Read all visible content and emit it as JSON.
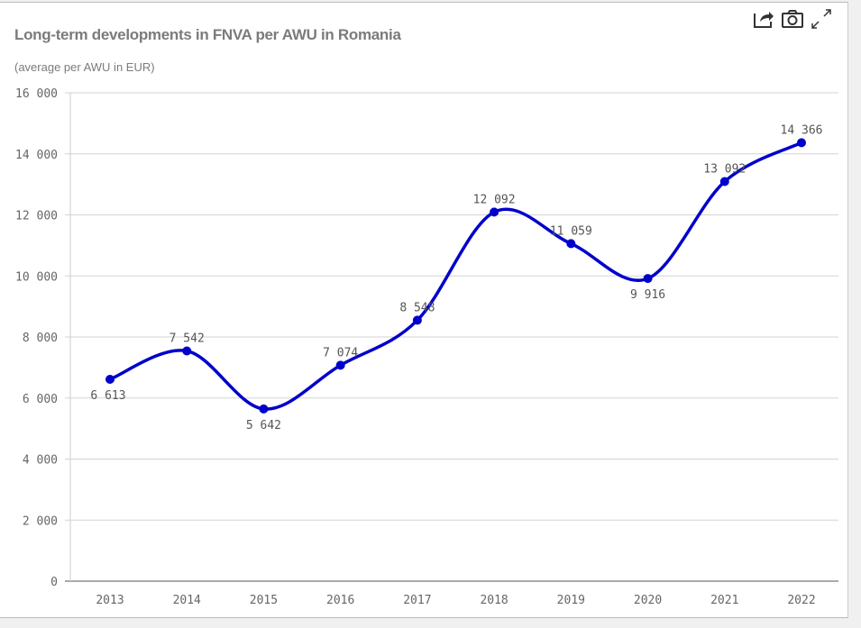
{
  "header": {
    "title": "Long-term developments in FNVA per AWU in  Romania",
    "subtitle": "(average per AWU in EUR)"
  },
  "toolbar": {
    "icons": [
      "share-icon",
      "camera-icon",
      "expand-icon"
    ]
  },
  "colors": {
    "line": "#0000cc",
    "grid": "#d3d3d3",
    "axis_text": "#666666"
  },
  "chart_data": {
    "type": "line",
    "title": "Long-term developments in FNVA per AWU in  Romania",
    "subtitle": "(average per AWU in EUR)",
    "categories": [
      "2013",
      "2014",
      "2015",
      "2016",
      "2017",
      "2018",
      "2019",
      "2020",
      "2021",
      "2022"
    ],
    "values": [
      6613,
      7542,
      5642,
      7074,
      8548,
      12092,
      11059,
      9916,
      13092,
      14366
    ],
    "data_labels": [
      "6 613",
      "7 542",
      "5 642",
      "7 074",
      "8 548",
      "12 092",
      "11 059",
      "9 916",
      "13 092",
      "14 366"
    ],
    "label_position": [
      "below",
      "above",
      "below",
      "above",
      "above",
      "above",
      "above",
      "below",
      "above",
      "above"
    ],
    "ylim": [
      0,
      16000
    ],
    "yticks": [
      0,
      2000,
      4000,
      6000,
      8000,
      10000,
      12000,
      14000,
      16000
    ],
    "ytick_labels": [
      "0",
      "2 000",
      "4 000",
      "6 000",
      "8 000",
      "10 000",
      "12 000",
      "14 000",
      "16 000"
    ],
    "grid": true,
    "smooth": true
  }
}
